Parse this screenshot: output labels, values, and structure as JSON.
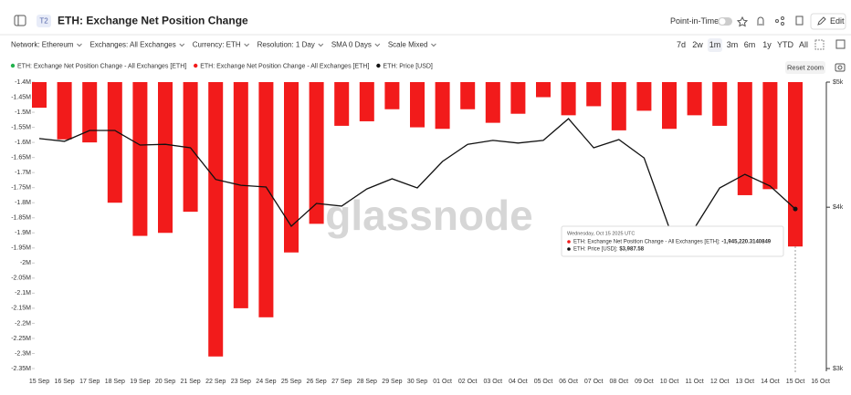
{
  "header": {
    "badge": "T2",
    "title": "ETH: Exchange Net Position Change",
    "point_in_time": "Point-in-Time",
    "edit": "Edit"
  },
  "toolbar": {
    "filters": [
      "Network: Ethereum",
      "Exchanges: All Exchanges",
      "Currency: ETH",
      "Resolution: 1 Day",
      "SMA 0 Days",
      "Scale Mixed"
    ],
    "ranges": [
      "7d",
      "2w",
      "1m",
      "3m",
      "6m",
      "1y",
      "YTD",
      "All"
    ],
    "reset_zoom": "Reset zoom"
  },
  "watermark": "glassnode",
  "tooltip": {
    "title": "Wednesday, Oct 15 2025 UTC",
    "entries": [
      {
        "name": "ETH: Exchange Net Position Change - All Exchanges [ETH]:",
        "value": "-1,945,220.3140849"
      },
      {
        "name": "ETH: Price [USD]:",
        "value": "$3,987.58"
      }
    ]
  },
  "chart_data": {
    "type": "bar",
    "categories": [
      "15 Sep",
      "16 Sep",
      "17 Sep",
      "18 Sep",
      "19 Sep",
      "20 Sep",
      "21 Sep",
      "22 Sep",
      "23 Sep",
      "24 Sep",
      "25 Sep",
      "26 Sep",
      "27 Sep",
      "28 Sep",
      "29 Sep",
      "30 Sep",
      "01 Oct",
      "02 Oct",
      "03 Oct",
      "04 Oct",
      "05 Oct",
      "06 Oct",
      "07 Oct",
      "08 Oct",
      "09 Oct",
      "10 Oct",
      "11 Oct",
      "12 Oct",
      "13 Oct",
      "14 Oct",
      "15 Oct",
      "16 Oct"
    ],
    "legend_extra": {
      "name": "ETH: Exchange Net Position Change - All Exchanges [ETH]",
      "color": "#22b14c"
    },
    "series": [
      {
        "name": "ETH: Exchange Net Position Change - All Exchanges [ETH]",
        "type": "bar",
        "color": "#f21b1b",
        "values": [
          -1485000,
          -1590000,
          -1600000,
          -1800000,
          -1910000,
          -1900000,
          -1830000,
          -2310000,
          -2150000,
          -2180000,
          -1965000,
          -1870000,
          -1545000,
          -1530000,
          -1490000,
          -1550000,
          -1555000,
          -1490000,
          -1535000,
          -1505000,
          -1450000,
          -1510000,
          -1480000,
          -1560000,
          -1495000,
          -1555000,
          -1510000,
          -1545000,
          -1775000,
          -1755000,
          -1945220.3140849,
          null
        ]
      },
      {
        "name": "ETH: Price [USD]",
        "type": "line",
        "axis": "y2",
        "color": "#111111",
        "values": [
          4521,
          4499,
          4587,
          4587,
          4469,
          4475,
          4447,
          4203,
          4160,
          4147,
          3867,
          4027,
          4008,
          4133,
          4208,
          4140,
          4340,
          4475,
          4506,
          4485,
          4506,
          4684,
          4447,
          4513,
          4368,
          3854,
          3854,
          4140,
          4242,
          4154,
          3987.58,
          null
        ]
      }
    ],
    "ylim": [
      -1400000,
      -2350000
    ],
    "yticks": [
      {
        "value": -1400000,
        "label": "-1.4M"
      },
      {
        "value": -1450000,
        "label": "-1.45M"
      },
      {
        "value": -1500000,
        "label": "-1.5M"
      },
      {
        "value": -1550000,
        "label": "-1.55M"
      },
      {
        "value": -1600000,
        "label": "-1.6M"
      },
      {
        "value": -1650000,
        "label": "-1.65M"
      },
      {
        "value": -1700000,
        "label": "-1.7M"
      },
      {
        "value": -1750000,
        "label": "-1.75M"
      },
      {
        "value": -1800000,
        "label": "-1.8M"
      },
      {
        "value": -1850000,
        "label": "-1.85M"
      },
      {
        "value": -1900000,
        "label": "-1.9M"
      },
      {
        "value": -1950000,
        "label": "-1.95M"
      },
      {
        "value": -2000000,
        "label": "-2M"
      },
      {
        "value": -2050000,
        "label": "-2.05M"
      },
      {
        "value": -2100000,
        "label": "-2.1M"
      },
      {
        "value": -2150000,
        "label": "-2.15M"
      },
      {
        "value": -2200000,
        "label": "-2.2M"
      },
      {
        "value": -2250000,
        "label": "-2.25M"
      },
      {
        "value": -2300000,
        "label": "-2.3M"
      },
      {
        "value": -2350000,
        "label": "-2.35M"
      }
    ],
    "y2lim": [
      3000,
      5000
    ],
    "y2log": true,
    "y2ticks": [
      {
        "value": 3000,
        "label": "$3k"
      },
      {
        "value": 4000,
        "label": "$4k"
      },
      {
        "value": 5000,
        "label": "$5k"
      }
    ],
    "grid": false
  }
}
